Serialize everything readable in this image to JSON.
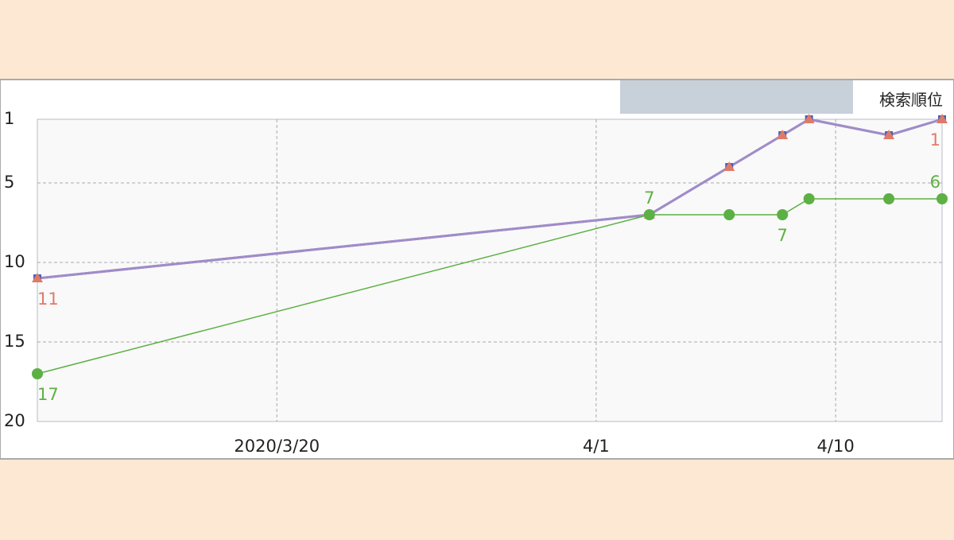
{
  "chart_data": {
    "type": "line",
    "y_label": "検索順位",
    "x": [
      "2020-03-11",
      "2020-04-03",
      "2020-04-06",
      "2020-04-08",
      "2020-04-09",
      "2020-04-12",
      "2020-04-14"
    ],
    "xlim": [
      "2020-03-11",
      "2020-04-14"
    ],
    "xticks": [
      {
        "value": "2020-03-20",
        "label": "2020/3/20"
      },
      {
        "value": "2020-04-01",
        "label": "4/1"
      },
      {
        "value": "2020-04-10",
        "label": "4/10"
      }
    ],
    "ylim": [
      20,
      1
    ],
    "yticks": [
      1,
      5,
      10,
      15,
      20
    ],
    "y_inverted": true,
    "grid": true,
    "series": [
      {
        "color": "#4a62b4",
        "marker": "square",
        "values": [
          11,
          7,
          4,
          2,
          1,
          2,
          1
        ],
        "value_labels": [
          null,
          null,
          null,
          null,
          null,
          null,
          null
        ]
      },
      {
        "color": "#e07a68",
        "marker": "triangle",
        "values": [
          11,
          7,
          4,
          2,
          1,
          2,
          1
        ],
        "value_labels": [
          "11",
          null,
          null,
          null,
          null,
          null,
          "1"
        ]
      },
      {
        "color": "#5db043",
        "marker": "circle",
        "values": [
          17,
          7,
          7,
          7,
          6,
          6,
          6
        ],
        "value_labels": [
          "17",
          "7",
          null,
          "7",
          null,
          null,
          "6"
        ]
      }
    ]
  }
}
